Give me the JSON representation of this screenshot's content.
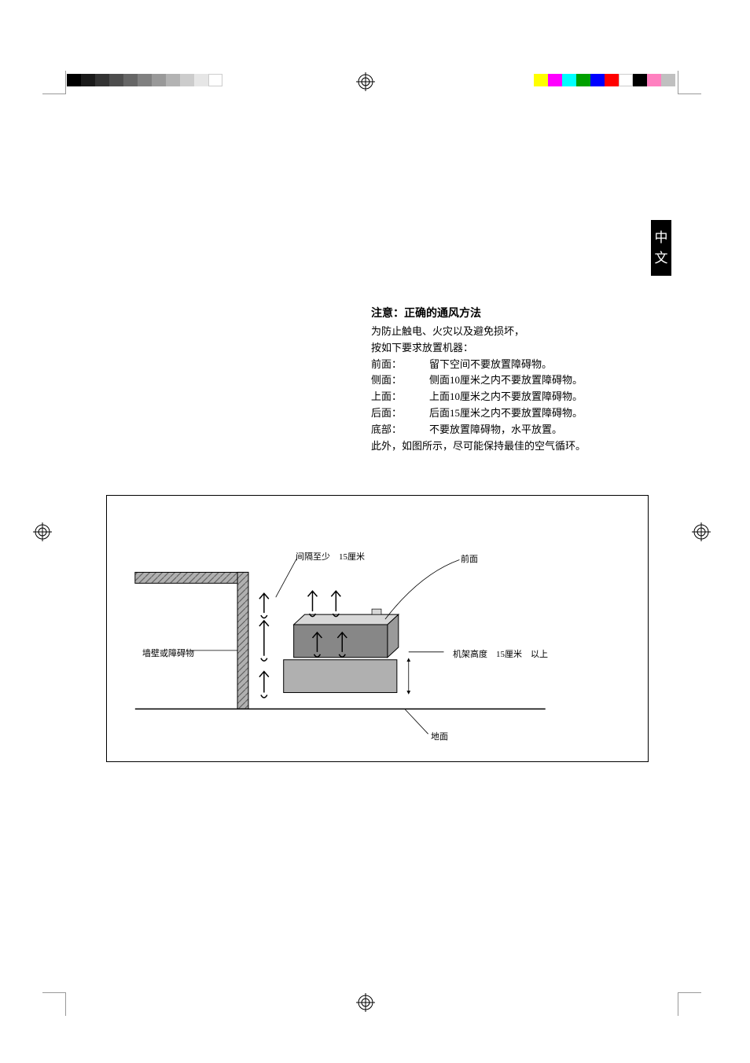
{
  "colorbar_left": [
    "#000000",
    "#1a1a1a",
    "#333333",
    "#4d4d4d",
    "#666666",
    "#808080",
    "#999999",
    "#b3b3b3",
    "#cccccc",
    "#e6e6e6",
    "#ffffff"
  ],
  "colorbar_right": [
    "#ffff00",
    "#ff00ff",
    "#00ffff",
    "#00a000",
    "#0000ff",
    "#ff0000",
    "#ffffff",
    "#000000",
    "#ff80c0",
    "#c0c0c0"
  ],
  "side_tab": {
    "line1": "中",
    "line2": "文"
  },
  "heading": "注意：正确的通风方法",
  "intro_lines": [
    "为防止触电、火灾以及避免损坏，",
    "按如下要求放置机器："
  ],
  "specs": [
    {
      "label": "前面：",
      "text": "留下空间不要放置障碍物。"
    },
    {
      "label": "侧面：",
      "text": "侧面10厘米之内不要放置障碍物。"
    },
    {
      "label": "上面：",
      "text": "上面10厘米之内不要放置障碍物。"
    },
    {
      "label": "后面：",
      "text": "后面15厘米之内不要放置障碍物。"
    },
    {
      "label": "底部：",
      "text": "不要放置障碍物，水平放置。"
    }
  ],
  "footer_line": "此外，如图所示，尽可能保持最佳的空气循环。",
  "diagram": {
    "label_gap": "间隔至少　15厘米",
    "label_front": "前面",
    "label_wall": "墙壁或障碍物",
    "label_stand": "机架高度　15厘米　以上",
    "label_floor": "地面",
    "wall_fill": "#b0b0b0",
    "stand_fill": "#b0b0b0",
    "unit_top_fill": "#d8d8d8",
    "unit_body_fill": "#878787"
  }
}
